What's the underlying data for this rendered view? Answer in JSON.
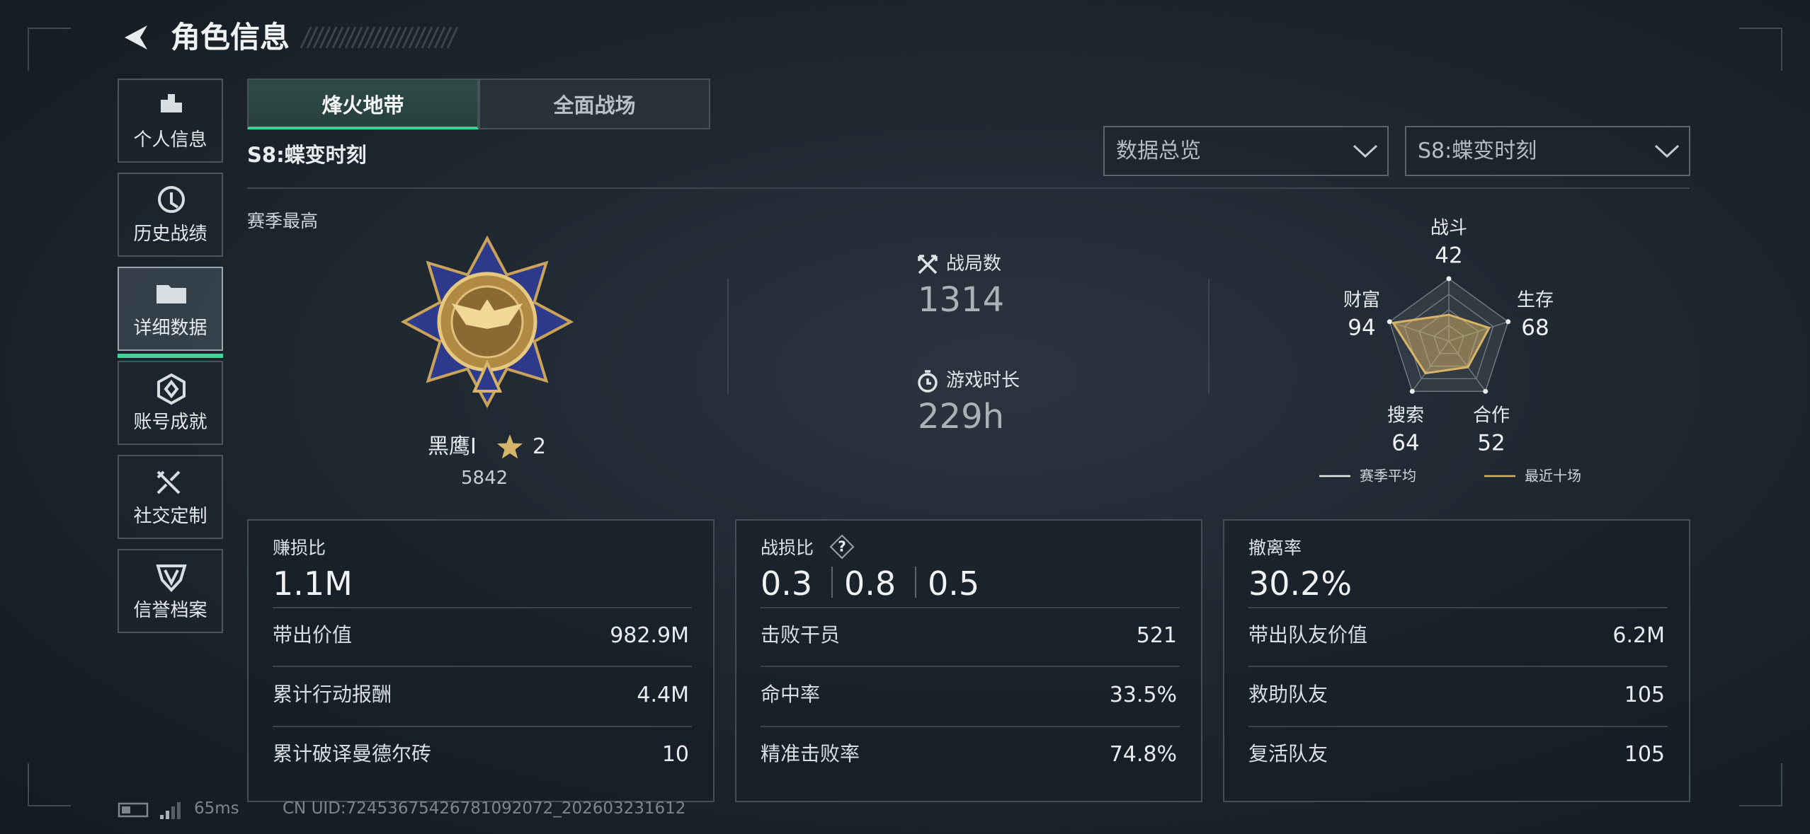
{
  "header": {
    "title": "角色信息"
  },
  "sidebar": {
    "items": [
      "个人信息",
      "历史战绩",
      "详细数据",
      "账号成就",
      "社交定制",
      "信誉档案"
    ],
    "selected": 2
  },
  "tabs": {
    "items": [
      "烽火地带",
      "全面战场"
    ],
    "selected": 0
  },
  "season": "S8:蝶变时刻",
  "filters": [
    "数据总览",
    "S8:蝶变时刻"
  ],
  "rank": {
    "section": "赛季最高",
    "name": "黑鹰I",
    "stars": 2,
    "score": 5842
  },
  "summary": [
    {
      "label": "战局数",
      "value": 1314
    },
    {
      "label": "游戏时长",
      "value": "229h"
    }
  ],
  "radar": {
    "rlim": [
      0,
      100
    ],
    "color": "#d8b466",
    "axes": [
      {
        "label": "战斗",
        "value": 42
      },
      {
        "label": "生存",
        "value": 68
      },
      {
        "label": "合作",
        "value": 52
      },
      {
        "label": "搜索",
        "value": 64
      },
      {
        "label": "财富",
        "value": 94
      }
    ],
    "legend": [
      "赛季平均",
      "最近十场"
    ]
  },
  "cards": [
    {
      "label": "赚损比",
      "values": [
        "1.1M"
      ],
      "rows": [
        [
          "带出价值",
          "982.9M"
        ],
        [
          "累计行动报酬",
          "4.4M"
        ],
        [
          "累计破译曼德尔砖",
          "10"
        ]
      ]
    },
    {
      "label": "战损比",
      "values": [
        "0.3",
        "0.8",
        "0.5"
      ],
      "rows": [
        [
          "击败干员",
          "521"
        ],
        [
          "命中率",
          "33.5%"
        ],
        [
          "精准击败率",
          "74.8%"
        ]
      ]
    },
    {
      "label": "撤离率",
      "values": [
        "30.2%"
      ],
      "rows": [
        [
          "带出队友价值",
          "6.2M"
        ],
        [
          "救助队友",
          "105"
        ],
        [
          "复活队友",
          "105"
        ]
      ]
    }
  ],
  "footer": {
    "ping": "65ms",
    "uid": "CN UID:72453675426781092072_202603231612"
  }
}
